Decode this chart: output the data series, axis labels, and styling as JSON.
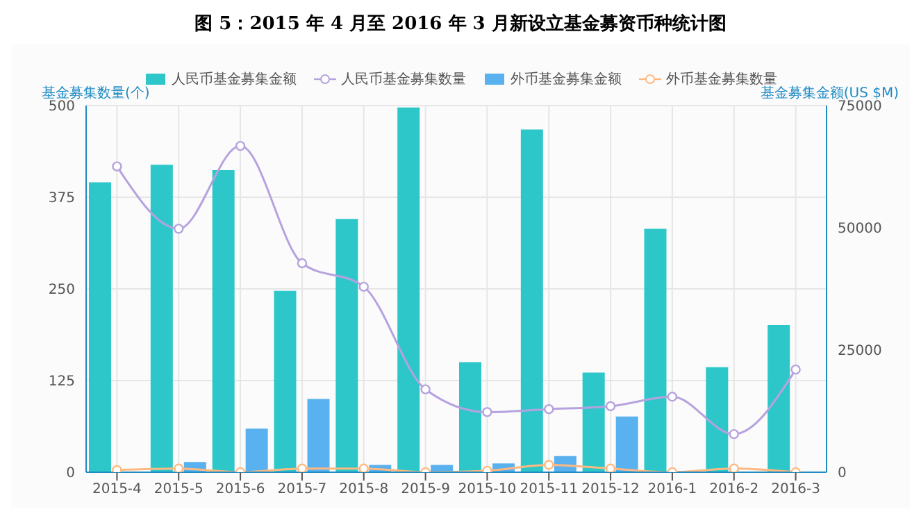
{
  "chart_data": {
    "type": "bar",
    "title": "图 5：2015 年 4 月至 2016 年 3 月新设立基金募资币种统计图",
    "ylabel": "基金募集数量(个)",
    "y2label": "基金募集金额(US $M)",
    "categories": [
      "2015-4",
      "2015-5",
      "2015-6",
      "2015-7",
      "2015-8",
      "2015-9",
      "2015-10",
      "2015-11",
      "2015-12",
      "2016-1",
      "2016-2",
      "2016-3"
    ],
    "series": [
      {
        "name": "人民币基金募集金额",
        "axis": "y2",
        "color": "#2ec7c9",
        "values": [
          59300,
          62900,
          61800,
          37100,
          51800,
          74600,
          22500,
          70100,
          20400,
          49800,
          21500,
          30100
        ]
      },
      {
        "name": "人民币基金募集数量",
        "type": "line",
        "axis": "y",
        "color": "#b6a2de",
        "values": [
          417,
          332,
          445,
          285,
          253,
          113,
          82,
          86,
          90,
          103,
          52,
          140
        ]
      },
      {
        "name": "外币基金募集金额",
        "axis": "y2",
        "color": "#5ab1ef",
        "values": [
          null,
          2100,
          8900,
          15000,
          1500,
          1500,
          1800,
          3300,
          11400,
          null,
          null,
          0
        ]
      },
      {
        "name": "外币基金募集数量",
        "type": "line",
        "axis": "y",
        "color": "#ffb980",
        "values": [
          3,
          5,
          0,
          5,
          5,
          0,
          2,
          10,
          5,
          0,
          5,
          0
        ]
      }
    ],
    "ylim": [
      0,
      500
    ],
    "yticks": [
      0,
      125,
      250,
      375,
      500
    ],
    "y2lim": [
      0,
      75000
    ],
    "y2ticks": [
      0,
      25000,
      50000,
      75000
    ],
    "grid": true,
    "legend": "top",
    "marker": "circle",
    "line_style": "solid"
  }
}
